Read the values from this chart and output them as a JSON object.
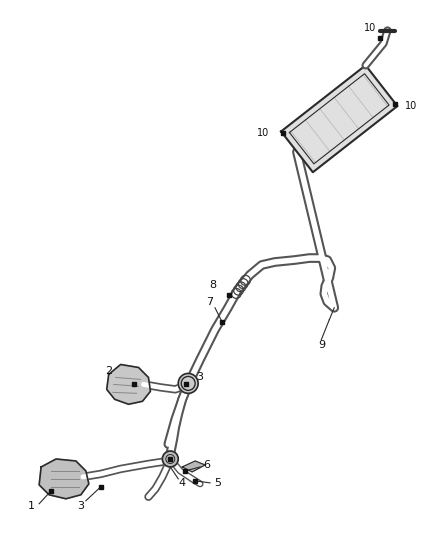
{
  "background_color": "#ffffff",
  "fig_width": 4.38,
  "fig_height": 5.33,
  "dpi": 100,
  "line_color": "#2a2a2a",
  "label_fontsize": 8,
  "label_color": "#111111",
  "pipe_color": "#555555",
  "component_face": "#d0d0d0",
  "component_edge": "#2a2a2a"
}
